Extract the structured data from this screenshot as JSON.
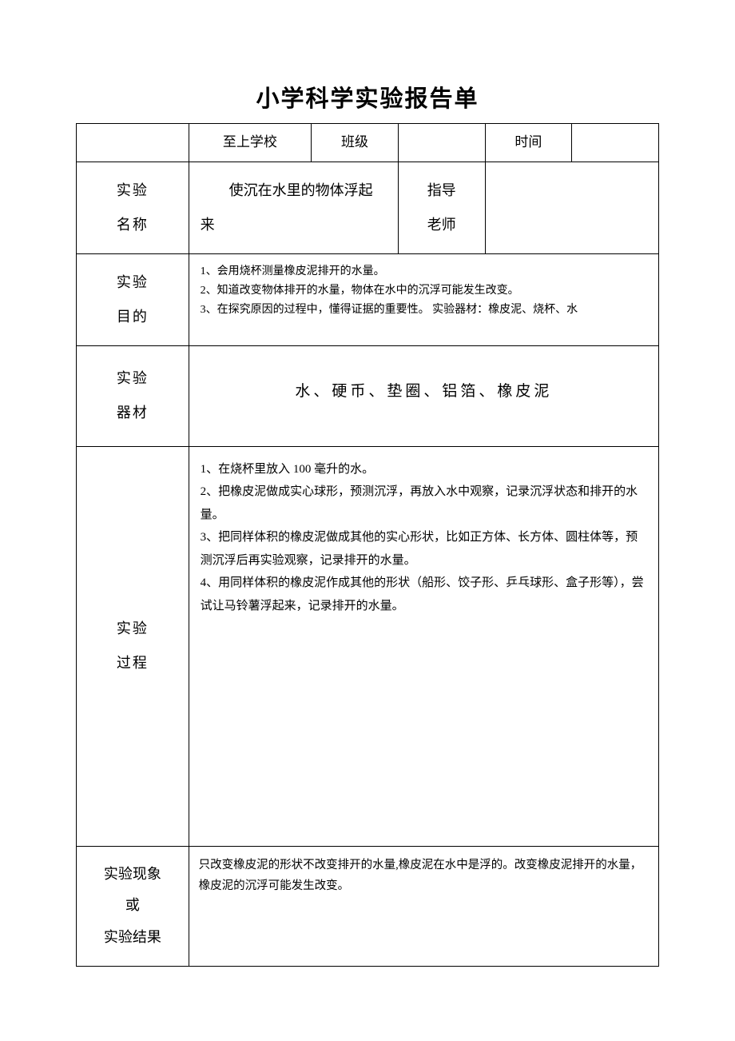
{
  "title": "小学科学实验报告单",
  "header": {
    "school_label": "至上学校",
    "class_label": "班级",
    "class_value": "",
    "time_label": "时间",
    "time_value": ""
  },
  "rows": {
    "name": {
      "label": "实验\n名称",
      "content": "　　使沉在水里的物体浮起来",
      "teacher_label": "指导\n老师",
      "teacher_value": ""
    },
    "purpose": {
      "label": "实验\n目的",
      "content": "1、会用烧杯测量橡皮泥排开的水量。\n2、知道改变物体排开的水量，物体在水中的沉浮可能发生改变。\n3、在探究原因的过程中，懂得证据的重要性。 实验器材：橡皮泥、烧杯、水"
    },
    "materials": {
      "label": "实验\n器材",
      "content": "水、硬币、垫圈、铝箔、橡皮泥"
    },
    "process": {
      "label": "实验\n过程",
      "content": "1、在烧杯里放入 100 毫升的水。\n2、把橡皮泥做成实心球形，预测沉浮，再放入水中观察，记录沉浮状态和排开的水量。\n3、把同样体积的橡皮泥做成其他的实心形状，比如正方体、长方体、圆柱体等，预测沉浮后再实验观察，记录排开的水量。\n4、用同样体积的橡皮泥作成其他的形状（船形、饺子形、乒乓球形、盒子形等），尝试让马铃薯浮起来，记录排开的水量。"
    },
    "result": {
      "label": "实验现象\n或\n实验结果",
      "content": "只改变橡皮泥的形状不改变排开的水量,橡皮泥在水中是浮的。改变橡皮泥排开的水量，橡皮泥的沉浮可能发生改变。"
    }
  }
}
